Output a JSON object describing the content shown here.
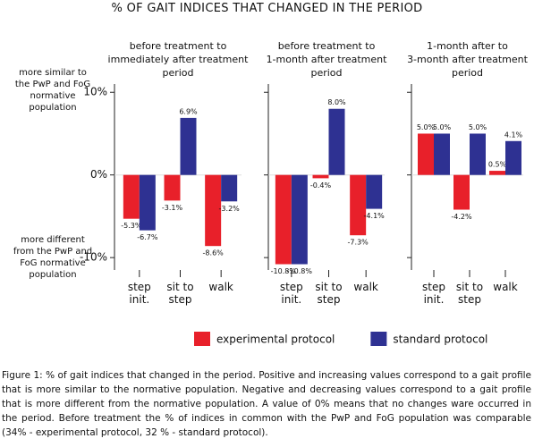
{
  "title": "% OF GAIT INDICES THAT CHANGED IN THE PERIOD",
  "annotations": [
    "more similar to\nthe PwP and FoG\nnormative\npopulation",
    "more different\nfrom the PwP and\nFoG normative\npopulation"
  ],
  "caption": "Figure 1: % of gait indices that changed in the period. Positive and increasing values correspond to a gait profile that is more similar to the normative population. Negative and decreasing values correspond to a gait profile that is more different from the normative population. A value of 0% means that no changes ware occurred in the period. Before treatment the % of indices in common with the PwP and FoG population was comparable (34% - experimental protocol, 32 % - standard protocol).",
  "chart_data": [
    {
      "type": "bar",
      "title": "before treatment to\nimmediately after treatment\nperiod",
      "categories": [
        "step\ninit.",
        "sit to\nstep",
        "walk"
      ],
      "ylim": [
        -11.5,
        11
      ],
      "yticks": [
        {
          "value": 10,
          "label": "10%"
        },
        {
          "value": 0,
          "label": "0%"
        },
        {
          "value": -10,
          "label": "-10%"
        }
      ],
      "series": [
        {
          "name": "experimental protocol",
          "color": "#e8202a",
          "values": [
            -5.3,
            -3.1,
            -8.6
          ],
          "value_labels": [
            "-5.3%",
            "-3.1%",
            "-8.6%"
          ]
        },
        {
          "name": "standard protocol",
          "color": "#2e3192",
          "values": [
            -6.7,
            6.9,
            -3.2
          ],
          "value_labels": [
            "-6.7%",
            "6.9%",
            "-3.2%"
          ]
        }
      ]
    },
    {
      "type": "bar",
      "title": "before treatment to\n1-month after treatment\nperiod",
      "categories": [
        "step\ninit.",
        "sit to\nstep",
        "walk"
      ],
      "series": [
        {
          "color": "#e8202a",
          "values": [
            -10.8,
            -0.4,
            -7.3
          ],
          "value_labels": [
            "-10.8%",
            "-0.4%",
            "-7.3%"
          ]
        },
        {
          "color": "#2e3192",
          "values": [
            -10.8,
            8.0,
            -4.1
          ],
          "value_labels": [
            "-10.8%",
            "8.0%",
            "-4.1%"
          ]
        }
      ]
    },
    {
      "type": "bar",
      "title": "1-month after to\n3-month after treatment\nperiod",
      "categories": [
        "step\ninit.",
        "sit to\nstep",
        "walk"
      ],
      "series": [
        {
          "color": "#e8202a",
          "values": [
            5.0,
            -4.2,
            0.5
          ],
          "value_labels": [
            "5.0%",
            "-4.2%",
            "0.5%"
          ]
        },
        {
          "color": "#2e3192",
          "values": [
            5.0,
            5.0,
            4.1
          ],
          "value_labels": [
            "5.0%",
            "5.0%",
            "4.1%"
          ]
        }
      ]
    }
  ]
}
